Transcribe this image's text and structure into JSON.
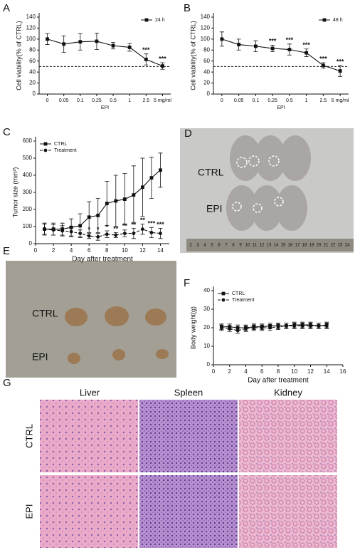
{
  "chart_data": [
    {
      "panel": "A",
      "type": "line",
      "x_label": "EPI",
      "y_label": "Cell viability(% of CTRL)",
      "categories": [
        "0",
        "0.05",
        "0.1",
        "0.25",
        "0.5",
        "1",
        "2.5",
        "5 mg/ml"
      ],
      "ylim": [
        0,
        140
      ],
      "yticks": [
        0,
        20,
        40,
        60,
        80,
        100,
        120,
        140
      ],
      "reference_line": 50,
      "legend": "upper right",
      "series": [
        {
          "name": "24 h",
          "color": "#111111",
          "marker": "square",
          "dash": false,
          "values": [
            100,
            91,
            95,
            96,
            88,
            85,
            63,
            51
          ],
          "errors": [
            10,
            15,
            15,
            15,
            6,
            7,
            10,
            6
          ],
          "annotations": [
            null,
            null,
            null,
            null,
            null,
            null,
            "***",
            "***"
          ]
        }
      ]
    },
    {
      "panel": "B",
      "type": "line",
      "x_label": "EPI",
      "y_label": "Cell viability(% of CTRL)",
      "categories": [
        "0",
        "0.05",
        "0.1",
        "0.25",
        "0.5",
        "1",
        "2.5",
        "5 mg/ml"
      ],
      "ylim": [
        0,
        140
      ],
      "yticks": [
        0,
        20,
        40,
        60,
        80,
        100,
        120,
        140
      ],
      "reference_line": 50,
      "legend": "upper right",
      "series": [
        {
          "name": "48 h",
          "color": "#111111",
          "marker": "square",
          "dash": false,
          "values": [
            100,
            90,
            87,
            83,
            81,
            75,
            52,
            42
          ],
          "errors": [
            13,
            10,
            10,
            6,
            10,
            7,
            5,
            10
          ],
          "annotations": [
            null,
            null,
            null,
            "***",
            "***",
            "***",
            "***",
            "***"
          ]
        }
      ]
    },
    {
      "panel": "C",
      "type": "line",
      "x_label": "Day after treatment",
      "y_label": "Tumor size (mm³)",
      "x": [
        1,
        2,
        3,
        4,
        5,
        6,
        7,
        8,
        9,
        10,
        11,
        12,
        13,
        14
      ],
      "xlim": [
        0,
        15
      ],
      "xticks": [
        0,
        2,
        4,
        6,
        8,
        10,
        12,
        14
      ],
      "ylim": [
        0,
        600
      ],
      "yticks": [
        0,
        100,
        200,
        300,
        400,
        500,
        600
      ],
      "legend": "upper left",
      "series": [
        {
          "name": "CTRL",
          "color": "#111111",
          "marker": "square",
          "dash": false,
          "values": [
            85,
            85,
            85,
            95,
            105,
            155,
            165,
            235,
            250,
            260,
            285,
            330,
            385,
            430
          ],
          "errors": [
            35,
            35,
            35,
            50,
            70,
            90,
            100,
            130,
            150,
            150,
            170,
            170,
            120,
            100
          ]
        },
        {
          "name": "Treatment",
          "color": "#111111",
          "marker": "circle",
          "dash": true,
          "values": [
            85,
            80,
            75,
            70,
            60,
            45,
            40,
            55,
            50,
            60,
            60,
            85,
            65,
            60
          ],
          "errors": [
            30,
            30,
            30,
            30,
            20,
            15,
            20,
            20,
            15,
            20,
            30,
            30,
            30,
            30
          ],
          "annotations": [
            null,
            null,
            null,
            null,
            null,
            "*",
            "*",
            "*",
            "**",
            "**",
            "**",
            "**",
            "***",
            "***"
          ]
        }
      ]
    },
    {
      "panel": "F",
      "type": "line",
      "x_label": "Day after treatment",
      "y_label": "Body weight(g)",
      "x": [
        1,
        2,
        3,
        4,
        5,
        6,
        7,
        8,
        9,
        10,
        11,
        12,
        13,
        14
      ],
      "xlim": [
        0,
        16
      ],
      "xticks": [
        0,
        2,
        4,
        6,
        8,
        10,
        12,
        14,
        16
      ],
      "ylim": [
        0,
        40
      ],
      "yticks": [
        0,
        10,
        20,
        30,
        40
      ],
      "legend": "upper left",
      "series": [
        {
          "name": "CTRL",
          "color": "#111111",
          "marker": "square",
          "dash": false,
          "values": [
            20.5,
            20.5,
            20,
            20,
            20.5,
            20.5,
            21,
            21,
            21,
            21.5,
            21.5,
            21.5,
            21,
            21.5
          ],
          "errors": [
            1.5,
            1.5,
            1.5,
            1.5,
            1.5,
            1.5,
            1.5,
            1.5,
            1.5,
            1.5,
            1.5,
            1.5,
            1.5,
            1.5
          ]
        },
        {
          "name": "Treatment",
          "color": "#111111",
          "marker": "circle",
          "dash": true,
          "values": [
            20,
            19.5,
            18.5,
            19.5,
            20,
            20,
            20,
            20.5,
            21,
            21,
            21,
            21,
            21,
            21
          ],
          "errors": [
            1.5,
            1.5,
            1.5,
            1.5,
            1.5,
            1.5,
            1.5,
            1.5,
            1.5,
            1.5,
            1.5,
            1.5,
            1.5,
            1.5
          ]
        }
      ]
    }
  ],
  "photos": {
    "D": {
      "panel": "D",
      "labels": [
        "CTRL",
        "EPI"
      ],
      "ruler": [
        "2",
        "3",
        "4",
        "5",
        "6",
        "7",
        "8",
        "9",
        "10",
        "11",
        "12",
        "13",
        "14",
        "15",
        "16",
        "17",
        "18",
        "19",
        "20",
        "21",
        "22",
        "23",
        "24"
      ]
    },
    "E": {
      "panel": "E",
      "labels": [
        "CTRL",
        "EPI"
      ]
    },
    "G": {
      "panel": "G",
      "columns": [
        "Liver",
        "Spleen",
        "Kidney"
      ],
      "rows": [
        "CTRL",
        "EPI"
      ]
    }
  }
}
